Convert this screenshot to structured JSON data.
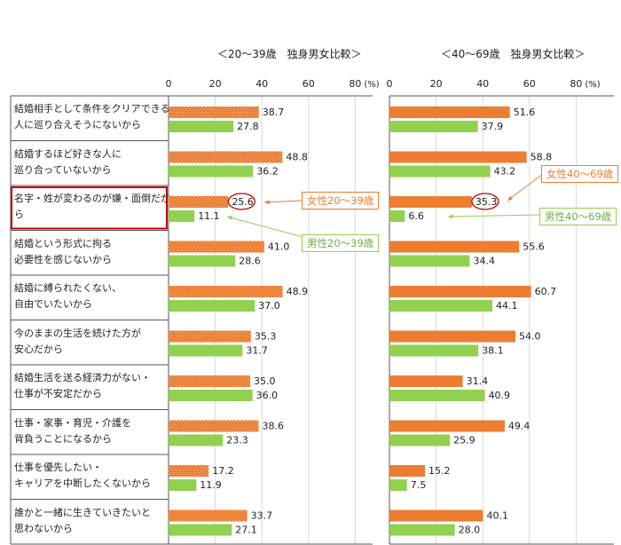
{
  "chart_data": [
    {
      "type": "bar",
      "title": "＜20～39歳　独身男女比較＞",
      "xunit": "(%)",
      "xlim": [
        0,
        80
      ],
      "xticks": [
        0,
        20,
        40,
        60,
        80
      ],
      "categories": [
        [
          "結婚相手として条件をクリアできる",
          "人に巡り合えそうにないから"
        ],
        [
          "結婚するほど好きな人に",
          "巡り合っていないから"
        ],
        [
          "名字・姓が変わるのが嫌・面倒だか",
          "ら"
        ],
        [
          "結婚という形式に拘る",
          "必要性を感じないから"
        ],
        [
          "結婚に縛られたくない、",
          "自由でいたいから"
        ],
        [
          "今のままの生活を続けた方が",
          "安心だから"
        ],
        [
          "結婚生活を送る経済力がない・",
          "仕事が不安定だから"
        ],
        [
          "仕事・家事・育児・介護を",
          "背負うことになるから"
        ],
        [
          "仕事を優先したい・",
          "キャリアを中断したくないから"
        ],
        [
          "誰かと一緒に生きていきたいと",
          "思わないから"
        ]
      ],
      "series": [
        {
          "name": "女性20～39歳",
          "values": [
            "38.7",
            "48.8",
            "25.6",
            "41.0",
            "48.9",
            "35.3",
            "35.0",
            "38.6",
            "17.2",
            "33.7"
          ]
        },
        {
          "name": "男性20～39歳",
          "values": [
            "27.8",
            "36.2",
            "11.1",
            "28.6",
            "37.0",
            "31.7",
            "36.0",
            "23.3",
            "11.9",
            "27.1"
          ]
        }
      ]
    },
    {
      "type": "bar",
      "title": "＜40～69歳　独身男女比較＞",
      "xunit": "(%)",
      "xlim": [
        0,
        80
      ],
      "xticks": [
        0,
        20,
        40,
        60,
        80
      ],
      "series": [
        {
          "name": "女性40～69歳",
          "values": [
            "51.6",
            "58.8",
            "35.3",
            "55.6",
            "60.7",
            "54.0",
            "31.4",
            "49.4",
            "15.2",
            "40.1"
          ]
        },
        {
          "name": "男性40～69歳",
          "values": [
            "37.9",
            "43.2",
            "6.6",
            "34.4",
            "44.1",
            "38.1",
            "40.9",
            "25.9",
            "7.5",
            "28.0"
          ]
        }
      ]
    }
  ],
  "colors": {
    "female": "#ed7d31",
    "male": "#92d050",
    "highlight": "#c00000"
  }
}
